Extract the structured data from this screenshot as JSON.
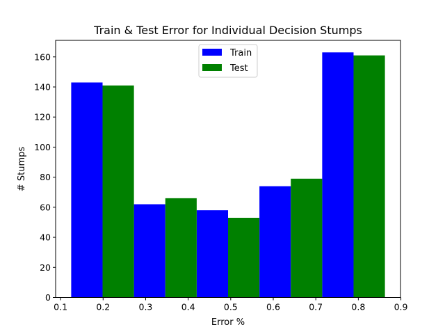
{
  "chart_data": {
    "type": "bar",
    "title": "Train & Test Error for Individual Decision Stumps",
    "xlabel": "Error %",
    "ylabel": "# Stumps",
    "bin_edges": [
      0.125,
      0.2725,
      0.42,
      0.5675,
      0.715,
      0.8625
    ],
    "series": [
      {
        "name": "Train",
        "color": "#0000ff",
        "values": [
          143,
          62,
          58,
          74,
          163
        ]
      },
      {
        "name": "Test",
        "color": "#008000",
        "values": [
          141,
          66,
          53,
          79,
          161
        ]
      }
    ],
    "xlim": [
      0.0884,
      0.8991
    ],
    "ylim": [
      0,
      171
    ],
    "xticks": [
      0.1,
      0.2,
      0.3,
      0.4,
      0.5,
      0.6,
      0.7,
      0.8,
      0.9
    ],
    "xtick_labels": [
      "0.1",
      "0.2",
      "0.3",
      "0.4",
      "0.5",
      "0.6",
      "0.7",
      "0.8",
      "0.9"
    ],
    "yticks": [
      0,
      20,
      40,
      60,
      80,
      100,
      120,
      140,
      160
    ],
    "ytick_labels": [
      "0",
      "20",
      "40",
      "60",
      "80",
      "100",
      "120",
      "140",
      "160"
    ],
    "grid": false,
    "legend": "top-center"
  }
}
